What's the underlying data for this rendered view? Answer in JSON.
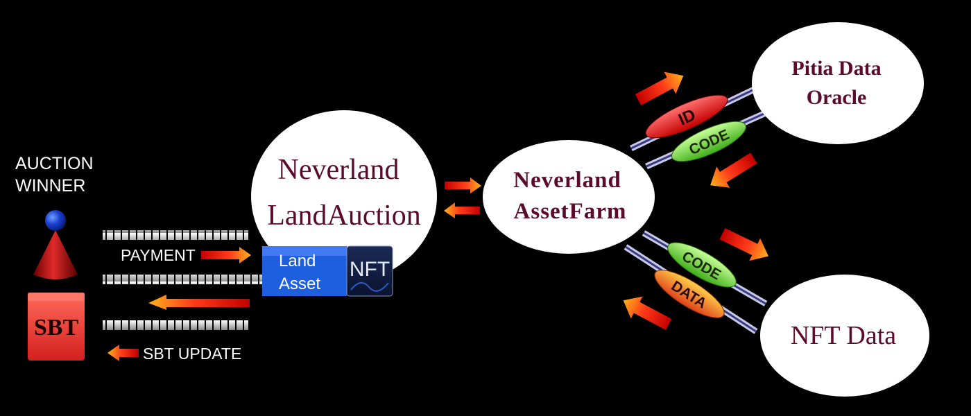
{
  "actor": {
    "line1": "AUCTION",
    "line2": "WINNER"
  },
  "sbt_badge": "SBT",
  "flows": {
    "payment": "PAYMENT",
    "sbt_update": "SBT  UPDATE"
  },
  "land_auction": {
    "line1": "Neverland",
    "line2": "LandAuction"
  },
  "land_asset": {
    "line1": "Land",
    "line2": "Asset",
    "nft_badge": "NFT"
  },
  "asset_farm": {
    "line1": "Neverland",
    "line2": "AssetFarm"
  },
  "oracle": {
    "line1": "Pitia  Data",
    "line2": "Oracle"
  },
  "nft_data": {
    "label": "NFT Data"
  },
  "pills": {
    "id": "ID",
    "code_top": "CODE",
    "code_bottom": "CODE",
    "data": "DATA"
  },
  "colors": {
    "background": "#000000",
    "node_fill": "#ffffff",
    "node_text": "#5a0a2a",
    "land_asset_blue": "#1e5fe0",
    "pill_red": "#e01e1e",
    "pill_green": "#7bd84a",
    "pill_orange": "#f0a020"
  }
}
